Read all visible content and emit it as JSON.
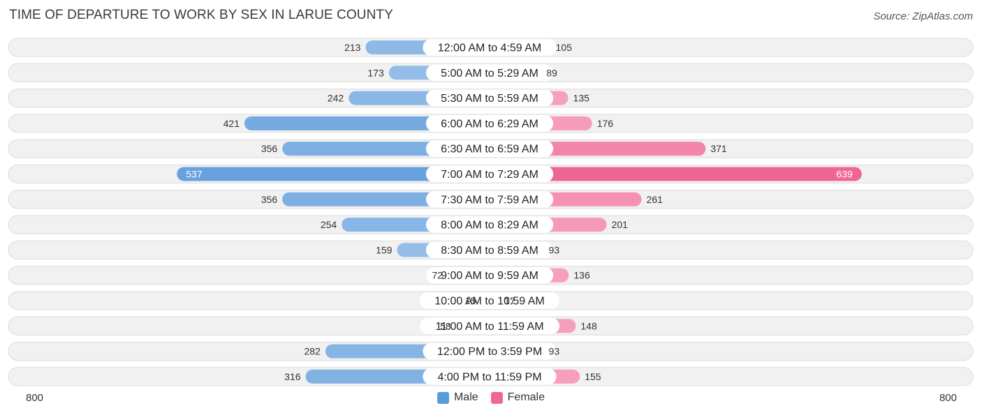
{
  "header": {
    "title": "TIME OF DEPARTURE TO WORK BY SEX IN LARUE COUNTY",
    "source": "Source: ZipAtlas.com"
  },
  "axis": {
    "left_label": "800",
    "right_label": "800"
  },
  "legend": {
    "male_label": "Male",
    "female_label": "Female"
  },
  "colors": {
    "male_strong": "#5b9bdc",
    "male_light": "#a8c8ec",
    "female_strong": "#f06693",
    "female_light": "#f8b0c8",
    "row_bg": "#f1f1f1",
    "row_border": "#dcdcdc"
  },
  "chart_data": {
    "type": "bar",
    "orientation": "horizontal-diverging",
    "title": "TIME OF DEPARTURE TO WORK BY SEX IN LARUE COUNTY",
    "xlim": [
      -800,
      800
    ],
    "categories": [
      "12:00 AM to 4:59 AM",
      "5:00 AM to 5:29 AM",
      "5:30 AM to 5:59 AM",
      "6:00 AM to 6:29 AM",
      "6:30 AM to 6:59 AM",
      "7:00 AM to 7:29 AM",
      "7:30 AM to 7:59 AM",
      "8:00 AM to 8:29 AM",
      "8:30 AM to 8:59 AM",
      "9:00 AM to 9:59 AM",
      "10:00 AM to 10:59 AM",
      "11:00 AM to 11:59 AM",
      "12:00 PM to 3:59 PM",
      "4:00 PM to 11:59 PM"
    ],
    "series": [
      {
        "name": "Male",
        "values": [
          213,
          173,
          242,
          421,
          356,
          537,
          356,
          254,
          159,
          72,
          15,
          58,
          282,
          316
        ]
      },
      {
        "name": "Female",
        "values": [
          105,
          89,
          135,
          176,
          371,
          639,
          261,
          201,
          93,
          136,
          17,
          148,
          93,
          155
        ]
      }
    ],
    "legend_position": "bottom-center"
  }
}
